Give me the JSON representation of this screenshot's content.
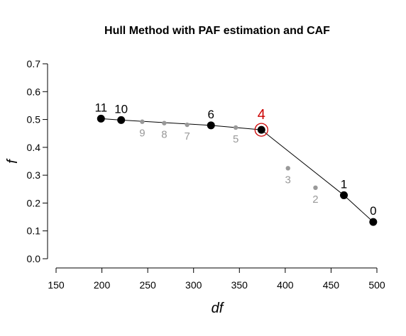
{
  "chart_data": {
    "type": "scatter",
    "title": "Hull Method with PAF estimation and CAF",
    "xlabel": "df",
    "ylabel": "f",
    "xlim": [
      150,
      500
    ],
    "ylim": [
      0.0,
      0.7
    ],
    "x_ticks": [
      150,
      200,
      250,
      300,
      350,
      400,
      450,
      500
    ],
    "y_ticks": [
      0.0,
      0.1,
      0.2,
      0.3,
      0.4,
      0.5,
      0.6,
      0.7
    ],
    "grid": false,
    "colors": {
      "hull": "#000000",
      "non_hull": "#999999",
      "selected": "#cc0000"
    },
    "points": [
      {
        "label": "11",
        "x": 199,
        "y": 0.503,
        "on_hull": true
      },
      {
        "label": "10",
        "x": 221,
        "y": 0.498,
        "on_hull": true
      },
      {
        "label": "9",
        "x": 244,
        "y": 0.492,
        "on_hull": false
      },
      {
        "label": "8",
        "x": 268,
        "y": 0.487,
        "on_hull": false
      },
      {
        "label": "7",
        "x": 293,
        "y": 0.481,
        "on_hull": false
      },
      {
        "label": "6",
        "x": 319,
        "y": 0.479,
        "on_hull": true
      },
      {
        "label": "5",
        "x": 346,
        "y": 0.471,
        "on_hull": false
      },
      {
        "label": "4",
        "x": 374,
        "y": 0.463,
        "on_hull": true,
        "selected": true
      },
      {
        "label": "3",
        "x": 403,
        "y": 0.325,
        "on_hull": false
      },
      {
        "label": "2",
        "x": 433,
        "y": 0.255,
        "on_hull": false
      },
      {
        "label": "1",
        "x": 464,
        "y": 0.228,
        "on_hull": true
      },
      {
        "label": "0",
        "x": 496,
        "y": 0.132,
        "on_hull": true
      }
    ],
    "hull_order": [
      "11",
      "10",
      "6",
      "4",
      "1",
      "0"
    ]
  }
}
